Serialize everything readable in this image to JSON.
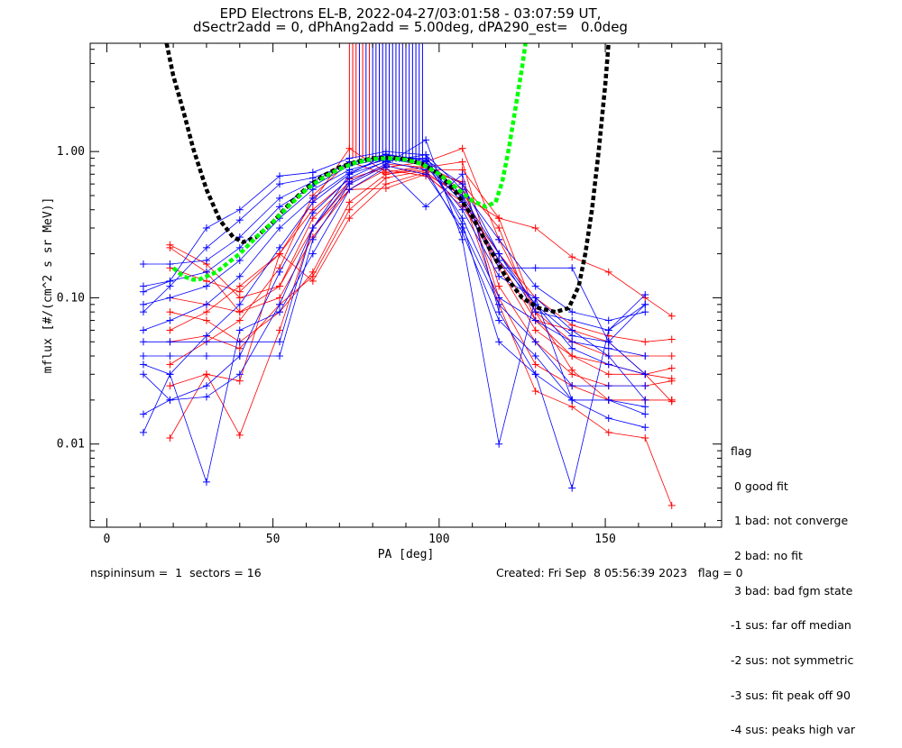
{
  "title_line1": "EPD Electrons EL-B, 2022-04-27/03:01:58 - 03:07:59 UT,",
  "title_line2": "dSectr2add = 0, dPhAng2add = 5.00deg, dPA290_est=   0.0deg",
  "footer_left": "nspininsum =  1  sectors = 16",
  "footer_right": "Created: Fri Sep  8 05:56:39 2023   flag = 0",
  "legend": {
    "title": "flag",
    "items": [
      " 0 good fit",
      " 1 bad: not converge",
      " 2 bad: no fit",
      " 3 bad: bad fgm state",
      "-1 sus: far off median",
      "-2 sus: not symmetric",
      "-3 sus: fit peak off 90",
      "-4 sus: peaks high var"
    ]
  },
  "chart_data": {
    "type": "line",
    "xlabel": "PA [deg]",
    "ylabel": "mflux [#/(cm^2 s sr MeV)]",
    "xlim": [
      -5,
      185
    ],
    "ylim": [
      0.0027,
      5.5
    ],
    "yscale": "log",
    "x_ticks": [
      0,
      50,
      100,
      150
    ],
    "x_tick_labels": [
      "0",
      "50",
      "100",
      "150"
    ],
    "y_ticks": [
      0.01,
      0.1,
      1.0
    ],
    "y_tick_labels": [
      "0.01",
      "0.10",
      "1.00"
    ],
    "grid": false,
    "colors": {
      "spinA": "#0000ff",
      "spinB": "#ff0000",
      "fit_full": "#000000",
      "fit_restricted": "#00ff00"
    },
    "spins_blue": [
      {
        "x": [
          11,
          19,
          30,
          40,
          52,
          62,
          73,
          84,
          96,
          107,
          118,
          129,
          140,
          151,
          162
        ],
        "y": [
          0.17,
          0.17,
          0.18,
          0.26,
          0.48,
          0.62,
          0.85,
          0.92,
          0.82,
          0.45,
          0.16,
          0.16,
          0.16,
          0.05,
          0.03
        ]
      },
      {
        "x": [
          11,
          19,
          30,
          40,
          52,
          62,
          73,
          84,
          96,
          107,
          118,
          129,
          140,
          151,
          162
        ],
        "y": [
          0.12,
          0.13,
          0.15,
          0.22,
          0.42,
          0.58,
          0.8,
          0.9,
          0.8,
          0.4,
          0.14,
          0.1,
          0.06,
          0.04,
          0.02
        ]
      },
      {
        "x": [
          11,
          19,
          30,
          40,
          52,
          62,
          73,
          84,
          96,
          107,
          118,
          129,
          140,
          151,
          162
        ],
        "y": [
          0.09,
          0.1,
          0.12,
          0.18,
          0.35,
          0.55,
          0.75,
          0.88,
          0.85,
          0.35,
          0.1,
          0.07,
          0.05,
          0.045,
          0.04
        ]
      },
      {
        "x": [
          11,
          19,
          30,
          40,
          52,
          62,
          73,
          84,
          96,
          107,
          118,
          129,
          140,
          151,
          162
        ],
        "y": [
          0.06,
          0.07,
          0.09,
          0.14,
          0.3,
          0.48,
          0.72,
          0.9,
          0.9,
          0.5,
          0.2,
          0.09,
          0.055,
          0.05,
          0.09
        ]
      },
      {
        "x": [
          11,
          19,
          30,
          40,
          52,
          62,
          73,
          84,
          96,
          107,
          118,
          129,
          140,
          151,
          162
        ],
        "y": [
          0.05,
          0.05,
          0.05,
          0.05,
          0.05,
          0.3,
          0.7,
          0.95,
          0.88,
          0.6,
          0.2,
          0.08,
          0.07,
          0.06,
          0.105
        ]
      },
      {
        "x": [
          11,
          19,
          30,
          40,
          52,
          62,
          73,
          84,
          96,
          107,
          118,
          129,
          140,
          151,
          162
        ],
        "y": [
          0.04,
          0.04,
          0.04,
          0.04,
          0.04,
          0.25,
          0.6,
          0.8,
          0.7,
          0.3,
          0.09,
          0.05,
          0.025,
          0.025,
          0.025
        ]
      },
      {
        "x": [
          11,
          19,
          30,
          40,
          52,
          62,
          73,
          84,
          96,
          107,
          118,
          129,
          140,
          151,
          162
        ],
        "y": [
          0.035,
          0.03,
          0.055,
          0.09,
          0.22,
          0.45,
          0.7,
          0.85,
          0.75,
          0.28,
          0.07,
          0.04,
          0.02,
          0.015,
          0.013
        ]
      },
      {
        "x": [
          11,
          19,
          30,
          40,
          52,
          62,
          73,
          84,
          96,
          107,
          118,
          129,
          140,
          151,
          162
        ],
        "y": [
          0.03,
          0.02,
          0.025,
          0.04,
          0.15,
          0.38,
          0.66,
          0.86,
          0.95,
          0.32,
          0.05,
          0.03,
          0.02,
          0.02,
          0.018
        ]
      },
      {
        "x": [
          11,
          19,
          30,
          40,
          52,
          62,
          73,
          84,
          96,
          107,
          118,
          129,
          140,
          151,
          162
        ],
        "y": [
          0.016,
          0.02,
          0.021,
          0.03,
          0.09,
          0.3,
          0.62,
          0.82,
          1.2,
          0.25,
          0.01,
          0.1,
          0.02,
          0.02,
          0.016
        ]
      },
      {
        "x": [
          11,
          19,
          30,
          40,
          52,
          62,
          73,
          84,
          96,
          107,
          118,
          129,
          140,
          151,
          162
        ],
        "y": [
          0.012,
          0.03,
          0.0055,
          0.06,
          0.08,
          0.2,
          0.55,
          0.78,
          0.42,
          0.7,
          0.08,
          0.03,
          0.005,
          0.06,
          0.09
        ]
      },
      {
        "x": [
          11,
          19,
          30,
          40,
          52,
          62,
          73,
          84,
          96,
          107,
          118,
          129,
          140,
          151,
          162
        ],
        "y": [
          0.11,
          0.13,
          0.3,
          0.4,
          0.68,
          0.72,
          0.9,
          1.0,
          0.95,
          0.55,
          0.25,
          0.12,
          0.08,
          0.07,
          0.08
        ]
      },
      {
        "x": [
          11,
          19,
          30,
          40,
          52,
          62,
          73,
          84,
          96,
          107,
          118,
          129,
          140,
          151,
          162
        ],
        "y": [
          0.08,
          0.12,
          0.22,
          0.34,
          0.6,
          0.66,
          0.82,
          0.96,
          0.86,
          0.48,
          0.18,
          0.09,
          0.045,
          0.035,
          0.03
        ]
      }
    ],
    "spins_red": [
      {
        "x": [
          19,
          30,
          40,
          52,
          62,
          73,
          84,
          96,
          107,
          118,
          129,
          140,
          151,
          162,
          170
        ],
        "y": [
          0.23,
          0.17,
          0.1,
          0.12,
          0.3,
          0.6,
          0.8,
          0.7,
          0.5,
          0.35,
          0.3,
          0.19,
          0.15,
          0.1,
          0.075
        ]
      },
      {
        "x": [
          19,
          30,
          40,
          52,
          62,
          73,
          84,
          96,
          107,
          118,
          129,
          140,
          151,
          162,
          170
        ],
        "y": [
          0.22,
          0.15,
          0.08,
          0.1,
          0.26,
          0.55,
          0.75,
          0.68,
          0.45,
          0.2,
          0.1,
          0.065,
          0.055,
          0.05,
          0.052
        ]
      },
      {
        "x": [
          19,
          30,
          40,
          52,
          62,
          73,
          84,
          96,
          107,
          118,
          129,
          140,
          151,
          162,
          170
        ],
        "y": [
          0.16,
          0.13,
          0.11,
          0.2,
          0.4,
          0.65,
          0.78,
          0.85,
          1.05,
          0.25,
          0.08,
          0.05,
          0.04,
          0.04,
          0.04
        ]
      },
      {
        "x": [
          19,
          30,
          40,
          52,
          62,
          73,
          84,
          96,
          107,
          118,
          129,
          140,
          151,
          162,
          170
        ],
        "y": [
          0.1,
          0.09,
          0.08,
          0.12,
          0.35,
          0.62,
          0.82,
          0.78,
          0.55,
          0.16,
          0.06,
          0.04,
          0.03,
          0.03,
          0.033
        ]
      },
      {
        "x": [
          19,
          30,
          40,
          52,
          62,
          73,
          84,
          96,
          107,
          118,
          129,
          140,
          151,
          162,
          170
        ],
        "y": [
          0.08,
          0.07,
          0.05,
          0.08,
          0.15,
          0.45,
          0.7,
          0.78,
          0.85,
          0.12,
          0.05,
          0.03,
          0.025,
          0.025,
          0.027
        ]
      },
      {
        "x": [
          19,
          30,
          40,
          52,
          62,
          73,
          84,
          96,
          107,
          118,
          129,
          140,
          151,
          162,
          170
        ],
        "y": [
          0.05,
          0.055,
          0.045,
          0.09,
          0.14,
          0.4,
          0.66,
          0.74,
          0.62,
          0.1,
          0.035,
          0.025,
          0.02,
          0.02,
          0.02
        ]
      },
      {
        "x": [
          19,
          30,
          40,
          52,
          62,
          73,
          84,
          96,
          107,
          118,
          129,
          140,
          151,
          162,
          170
        ],
        "y": [
          0.025,
          0.03,
          0.027,
          0.2,
          0.13,
          0.35,
          0.6,
          0.72,
          0.5,
          0.09,
          0.023,
          0.018,
          0.012,
          0.011,
          0.0038
        ]
      },
      {
        "x": [
          19,
          30,
          40,
          52,
          62,
          73,
          84,
          96,
          107,
          118,
          129,
          140,
          151,
          162,
          170
        ],
        "y": [
          0.011,
          0.03,
          0.0115,
          0.06,
          0.3,
          0.55,
          0.56,
          0.7,
          0.42,
          0.18,
          0.07,
          0.06,
          0.05,
          0.03,
          0.0195
        ]
      },
      {
        "x": [
          19,
          30,
          40,
          52,
          62,
          73,
          84,
          96,
          107,
          118,
          129,
          140,
          151,
          162,
          170
        ],
        "y": [
          0.06,
          0.08,
          0.12,
          0.2,
          0.45,
          1.05,
          0.72,
          0.8,
          0.6,
          0.3,
          0.07,
          0.04,
          0.035,
          0.03,
          0.028
        ]
      },
      {
        "x": [
          19,
          30,
          40,
          52,
          62,
          73,
          84,
          96,
          107,
          118,
          129,
          140,
          151,
          162,
          170
        ],
        "y": [
          0.035,
          0.05,
          0.07,
          0.16,
          0.5,
          0.85,
          0.7,
          0.75,
          0.75,
          0.35,
          0.08,
          0.032,
          0.02,
          0.02,
          0.02
        ]
      }
    ],
    "spike_lines_blue_x": [
      76,
      78,
      80,
      81,
      82,
      83,
      84,
      85,
      86,
      87,
      88,
      89,
      90,
      91,
      92,
      93,
      94,
      95
    ],
    "spike_lines_red_x": [
      73,
      74,
      75,
      77,
      79
    ],
    "fit_full": {
      "x": [
        18,
        20,
        23,
        26,
        30,
        34,
        38,
        41,
        45,
        50,
        55,
        60,
        65,
        70,
        75,
        80,
        85,
        90,
        95,
        100,
        105,
        110,
        115,
        120,
        125,
        130,
        135,
        139,
        142,
        144,
        146,
        148,
        150,
        151
      ],
      "y": [
        5.5,
        3.3,
        1.9,
        1.05,
        0.55,
        0.34,
        0.26,
        0.24,
        0.26,
        0.33,
        0.44,
        0.56,
        0.68,
        0.78,
        0.85,
        0.9,
        0.91,
        0.89,
        0.82,
        0.7,
        0.53,
        0.36,
        0.22,
        0.14,
        0.1,
        0.085,
        0.08,
        0.085,
        0.12,
        0.2,
        0.4,
        1.0,
        2.9,
        5.5
      ]
    },
    "fit_restricted": {
      "x": [
        20,
        23,
        26,
        28,
        30,
        33,
        36,
        40,
        45,
        50,
        55,
        60,
        65,
        70,
        75,
        80,
        85,
        90,
        95,
        100,
        105,
        110,
        114,
        117,
        119,
        121,
        123,
        125,
        126
      ],
      "y": [
        0.16,
        0.14,
        0.133,
        0.134,
        0.14,
        0.15,
        0.17,
        0.2,
        0.26,
        0.33,
        0.43,
        0.55,
        0.66,
        0.76,
        0.84,
        0.89,
        0.9,
        0.88,
        0.82,
        0.7,
        0.57,
        0.46,
        0.42,
        0.45,
        0.62,
        1.05,
        2.0,
        3.8,
        5.5
      ]
    }
  }
}
